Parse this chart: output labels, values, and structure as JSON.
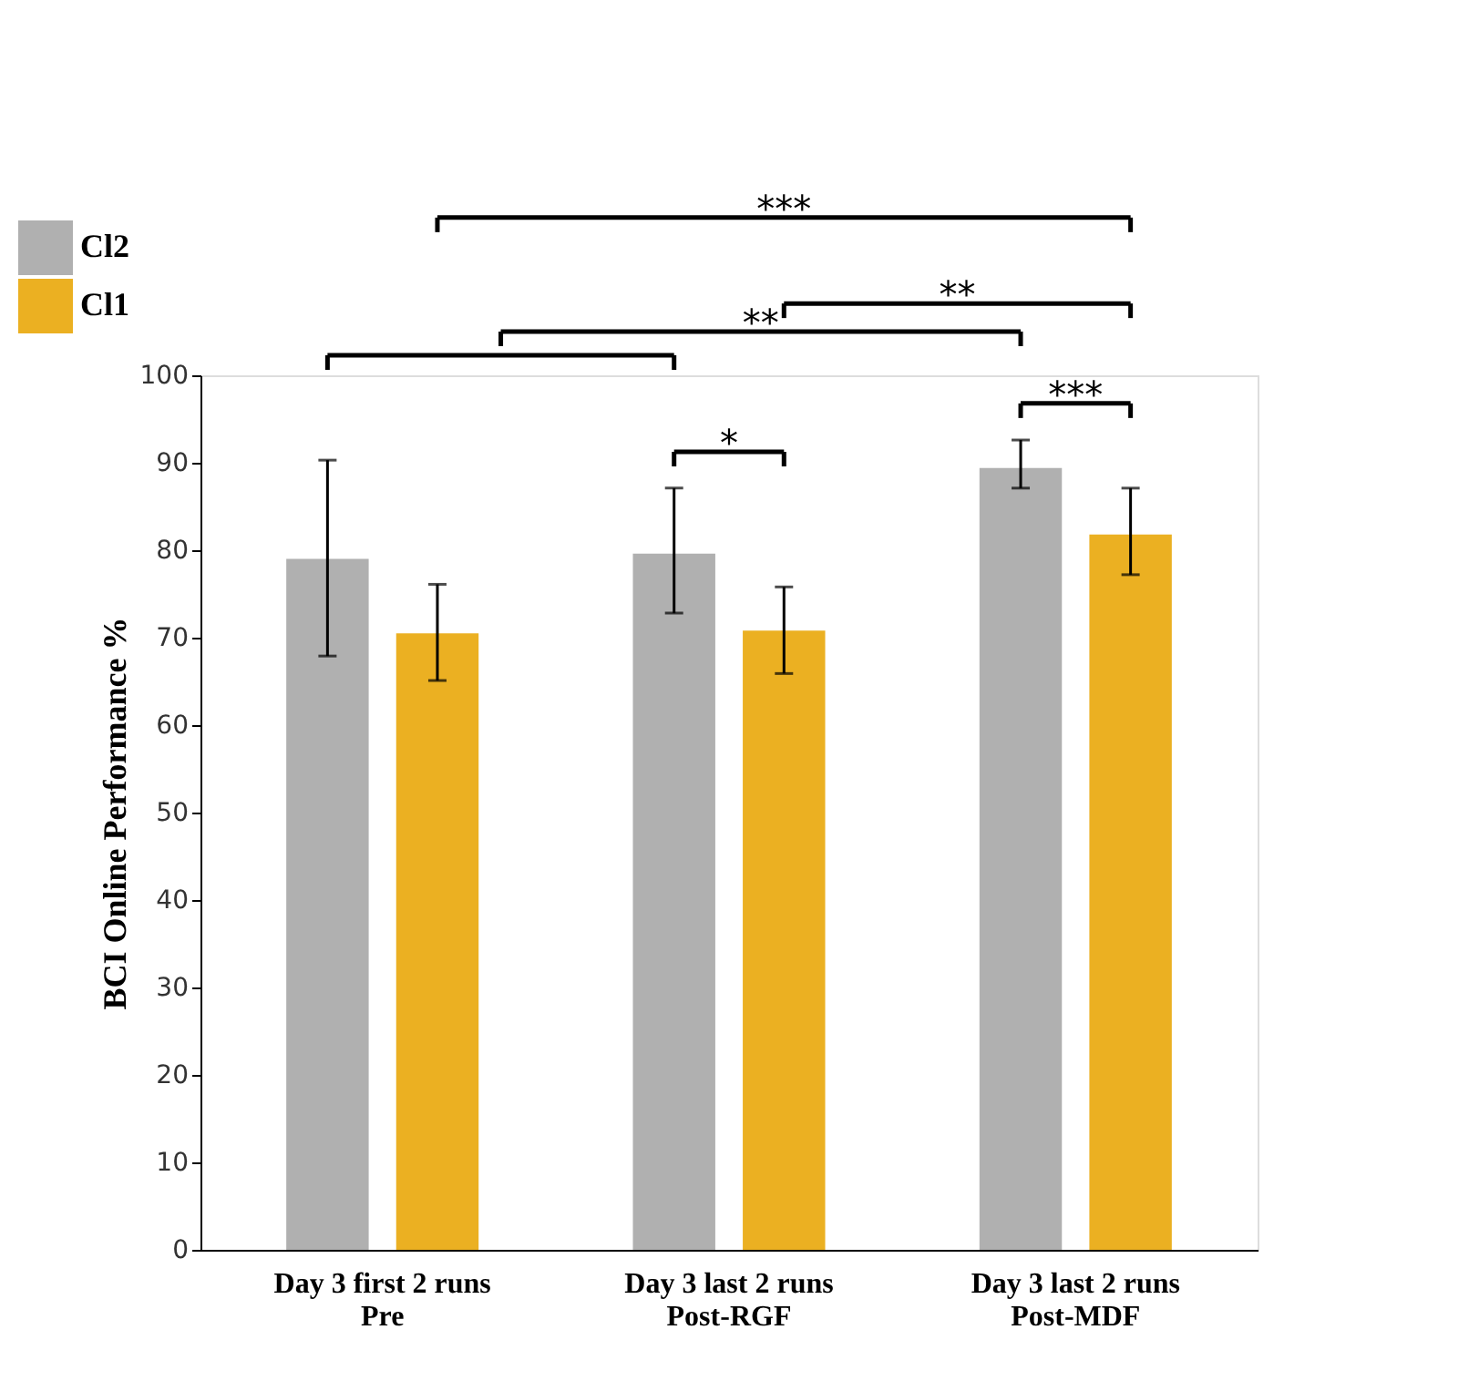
{
  "chart_data": {
    "type": "bar",
    "ylabel": "BCI Online Performance %",
    "categories": [
      "Day 3 first 2 runs\nPre",
      "Day 3 last 2 runs\nPost-RGF",
      "Day 3 last 2 runs\nPost-MDF"
    ],
    "series": [
      {
        "name": "Cl2",
        "color": "#b0b0b0",
        "values": [
          79.0,
          79.6,
          89.4
        ],
        "errors": [
          [
            67.9,
            90.3
          ],
          [
            72.8,
            87.1
          ],
          [
            87.1,
            92.6
          ]
        ]
      },
      {
        "name": "Cl1",
        "color": "#ebb022",
        "values": [
          70.5,
          70.8,
          81.8
        ],
        "errors": [
          [
            65.1,
            76.1
          ],
          [
            65.9,
            75.8
          ],
          [
            77.2,
            87.1
          ]
        ]
      }
    ],
    "ylim": [
      0,
      100
    ],
    "yticks": [
      0,
      10,
      20,
      30,
      40,
      50,
      60,
      70,
      80,
      90,
      100
    ],
    "legend": "top left",
    "annotations": [
      "***",
      "**",
      "**",
      "*",
      "***"
    ]
  }
}
